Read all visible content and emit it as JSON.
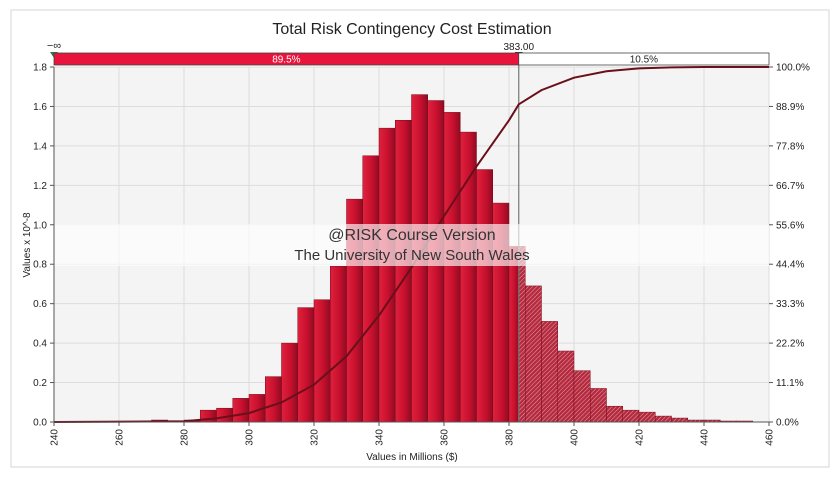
{
  "chart_data": {
    "type": "bar",
    "title": "Total Risk Contingency Cost Estimation",
    "xlabel": "Values in Millions ($)",
    "ylabel": "Values x 10^-8",
    "xlim": [
      240,
      460
    ],
    "ylim": [
      0,
      1.8
    ],
    "x_ticks": [
      "240",
      "260",
      "280",
      "300",
      "320",
      "340",
      "360",
      "380",
      "400",
      "420",
      "440",
      "460"
    ],
    "y_ticks": [
      "0.0",
      "0.2",
      "0.4",
      "0.6",
      "0.8",
      "1.0",
      "1.2",
      "1.4",
      "1.6",
      "1.8"
    ],
    "y2_ticks": [
      "0.0%",
      "11.1%",
      "22.2%",
      "33.3%",
      "44.4%",
      "55.6%",
      "66.7%",
      "77.8%",
      "88.9%",
      "100.0%"
    ],
    "bin_width": 5,
    "bins": [
      {
        "x": 270,
        "value": 0.01
      },
      {
        "x": 275,
        "value": 0.005
      },
      {
        "x": 280,
        "value": 0.01
      },
      {
        "x": 285,
        "value": 0.06
      },
      {
        "x": 290,
        "value": 0.07
      },
      {
        "x": 295,
        "value": 0.12
      },
      {
        "x": 300,
        "value": 0.14
      },
      {
        "x": 305,
        "value": 0.23
      },
      {
        "x": 310,
        "value": 0.4
      },
      {
        "x": 315,
        "value": 0.58
      },
      {
        "x": 320,
        "value": 0.62
      },
      {
        "x": 325,
        "value": 0.79
      },
      {
        "x": 330,
        "value": 1.13
      },
      {
        "x": 335,
        "value": 1.35
      },
      {
        "x": 340,
        "value": 1.49
      },
      {
        "x": 345,
        "value": 1.53
      },
      {
        "x": 350,
        "value": 1.66
      },
      {
        "x": 355,
        "value": 1.63
      },
      {
        "x": 360,
        "value": 1.57
      },
      {
        "x": 365,
        "value": 1.47
      },
      {
        "x": 370,
        "value": 1.28
      },
      {
        "x": 375,
        "value": 1.11
      },
      {
        "x": 380,
        "value": 0.89
      },
      {
        "x": 385,
        "value": 0.69
      },
      {
        "x": 390,
        "value": 0.51
      },
      {
        "x": 395,
        "value": 0.36
      },
      {
        "x": 400,
        "value": 0.26
      },
      {
        "x": 405,
        "value": 0.17
      },
      {
        "x": 410,
        "value": 0.08
      },
      {
        "x": 415,
        "value": 0.06
      },
      {
        "x": 420,
        "value": 0.05
      },
      {
        "x": 425,
        "value": 0.03
      },
      {
        "x": 430,
        "value": 0.02
      },
      {
        "x": 435,
        "value": 0.01
      },
      {
        "x": 440,
        "value": 0.01
      },
      {
        "x": 445,
        "value": 0.005
      },
      {
        "x": 450,
        "value": 0.005
      }
    ],
    "threshold": {
      "value": 383.0,
      "label": "383.00",
      "left_label": "−∞",
      "left_pct": "89.5%",
      "right_pct": "10.5%"
    },
    "cumulative_series": {
      "x": [
        240,
        280,
        290,
        300,
        310,
        320,
        330,
        340,
        350,
        360,
        370,
        380,
        383,
        390,
        400,
        410,
        420,
        430,
        440,
        450,
        460
      ],
      "y": [
        0,
        0.2,
        1.0,
        2.5,
        5.5,
        10.5,
        18.5,
        30.0,
        43.5,
        58.0,
        72.0,
        85.0,
        89.5,
        93.5,
        97.0,
        98.8,
        99.6,
        99.9,
        100,
        100,
        100
      ]
    },
    "colors": {
      "left_bar": "#c8102e",
      "right_bar": "#a81d31",
      "cumulative_line": "#6b0f1a",
      "left_band": "#e8143c"
    },
    "watermark": {
      "line1": "@RISK Course Version",
      "line2": "The University of New South Wales"
    }
  }
}
